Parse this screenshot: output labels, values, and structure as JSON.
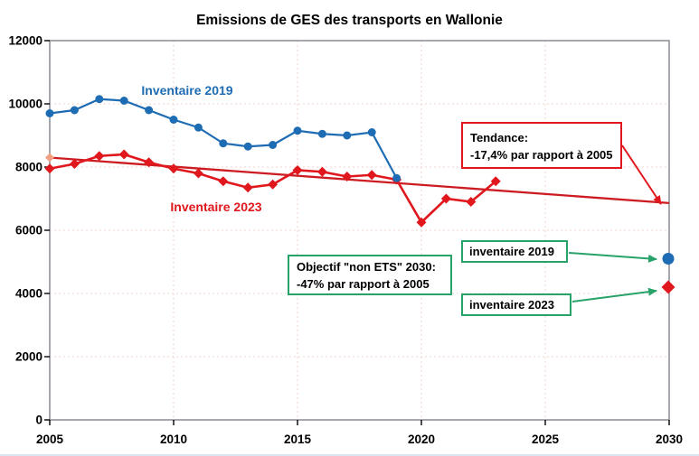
{
  "title": "Emissions de GES des transports en Wallonie",
  "colors": {
    "blue": "#1e6cb4",
    "red": "#e0181e",
    "trend_red": "#cc1c22",
    "trend_start": "#f0a183",
    "green": "#27a269",
    "grid": "#f2d3cf",
    "frame": "#8f9399",
    "text": "#000000"
  },
  "chart_data": {
    "type": "line",
    "title": "Emissions de GES des transports en Wallonie",
    "xlabel": "",
    "ylabel": "",
    "xlim": [
      2005,
      2030
    ],
    "ylim": [
      0,
      12000
    ],
    "x_ticks": [
      2005,
      2010,
      2015,
      2020,
      2025,
      2030
    ],
    "y_ticks": [
      0,
      2000,
      4000,
      6000,
      8000,
      10000,
      12000
    ],
    "grid": "light dashed horizontal and vertical",
    "legend_position": "inline labels on lines",
    "series": [
      {
        "name": "Inventaire 2019",
        "color": "#1e6cb4",
        "marker": "circle",
        "x": [
          2005,
          2006,
          2007,
          2008,
          2009,
          2010,
          2011,
          2012,
          2013,
          2014,
          2015,
          2016,
          2017,
          2018,
          2019
        ],
        "values": [
          9700,
          9800,
          10150,
          10100,
          9800,
          9500,
          9250,
          8750,
          8650,
          8700,
          9150,
          9050,
          9000,
          9100,
          7650
        ]
      },
      {
        "name": "Inventaire 2023",
        "color": "#e0181e",
        "marker": "diamond",
        "x": [
          2005,
          2006,
          2007,
          2008,
          2009,
          2010,
          2011,
          2012,
          2013,
          2014,
          2015,
          2016,
          2017,
          2018,
          2019,
          2020,
          2021,
          2022,
          2023
        ],
        "values": [
          7950,
          8100,
          8350,
          8400,
          8150,
          7950,
          7800,
          7550,
          7350,
          7450,
          7900,
          7850,
          7700,
          7750,
          7600,
          6250,
          7000,
          6900,
          7550
        ]
      },
      {
        "name": "Tendance",
        "color": "#cc1c22",
        "marker": "none",
        "start_marker_color": "#f0a183",
        "x": [
          2005,
          2030
        ],
        "values": [
          8300,
          6860
        ]
      }
    ],
    "objective_points": [
      {
        "name": "inventaire 2019",
        "x": 2030,
        "value": 5100,
        "color": "#1e6cb4",
        "marker": "circle"
      },
      {
        "name": "inventaire 2023",
        "x": 2030,
        "value": 4200,
        "color": "#e0181e",
        "marker": "diamond"
      }
    ]
  },
  "annotations": {
    "tendance": {
      "line1": "Tendance:",
      "line2": "-17,4% par rapport à 2005",
      "border_color": "#e0181e"
    },
    "objectif": {
      "line1": "Objectif \"non ETS\" 2030:",
      "line2": "-47% par rapport à 2005",
      "border_color": "#27a269"
    },
    "inv2019": {
      "label": "inventaire 2019",
      "border_color": "#27a269"
    },
    "inv2023": {
      "label": "inventaire 2023",
      "border_color": "#27a269"
    }
  }
}
